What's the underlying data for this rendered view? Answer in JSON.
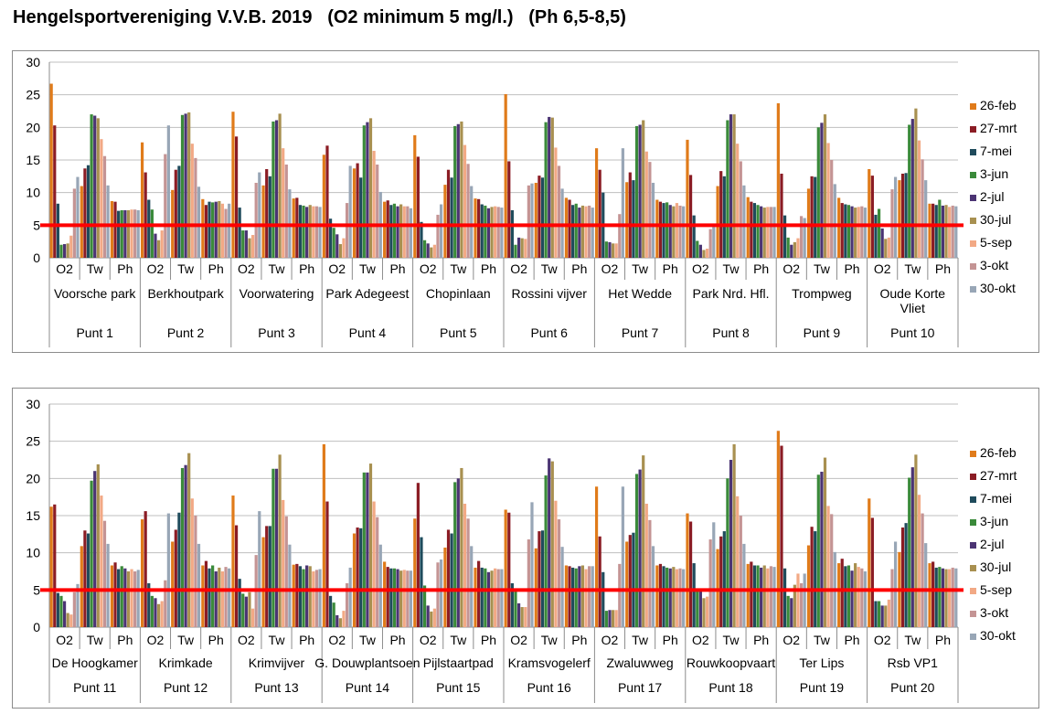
{
  "page": {
    "title": "Hengelsportvereniging V.V.B. 2019   (O2 minimum 5 mg/l.)   (Ph 6,5-8,5)"
  },
  "colors": {
    "series": [
      "#e07b1a",
      "#8b1c24",
      "#1f4b5c",
      "#3a8a3a",
      "#4b3473",
      "#a89050",
      "#f2a985",
      "#c49494",
      "#98a6b6"
    ],
    "threshold_line": "#ff0000",
    "gridline": "#bfbfbf",
    "axis": "#8c8c8c"
  },
  "chart_data": [
    {
      "type": "bar",
      "ylim": [
        0,
        30
      ],
      "yticks": [
        0,
        5,
        10,
        15,
        20,
        25,
        30
      ],
      "threshold": 5,
      "grid": true,
      "legend_position": "right",
      "series_names": [
        "26-feb",
        "27-mrt",
        "7-mei",
        "3-jun",
        "2-jul",
        "30-jul",
        "5-sep",
        "3-okt",
        "30-okt"
      ],
      "measures": [
        "O2",
        "Tw",
        "Ph"
      ],
      "groups": [
        {
          "punt": "Punt 1",
          "location": [
            "Voorsche park"
          ],
          "O2": [
            26.7,
            20.3,
            8.3,
            2.0,
            2.1,
            2.2,
            3.4,
            10.6,
            12.4
          ],
          "Tw": [
            11.0,
            13.7,
            14.2,
            22.0,
            21.8,
            21.4,
            18.2,
            15.6,
            11.1
          ],
          "Ph": [
            8.7,
            8.6,
            7.2,
            7.3,
            7.3,
            7.3,
            7.4,
            7.4,
            7.3
          ]
        },
        {
          "punt": "Punt 2",
          "location": [
            "Berkhoutpark"
          ],
          "O2": [
            17.7,
            13.1,
            8.9,
            7.4,
            3.7,
            2.7,
            4.2,
            15.9,
            20.3
          ],
          "Tw": [
            10.4,
            13.5,
            14.1,
            21.9,
            22.1,
            22.3,
            17.5,
            15.3,
            10.9
          ],
          "Ph": [
            9.0,
            8.1,
            8.6,
            8.5,
            8.6,
            8.7,
            8.3,
            7.5,
            8.3
          ]
        },
        {
          "punt": "Punt 3",
          "location": [
            "Voorwatering"
          ],
          "O2": [
            22.4,
            18.6,
            7.7,
            4.2,
            4.2,
            3.0,
            3.5,
            11.5,
            13.1
          ],
          "Tw": [
            11.1,
            13.6,
            12.5,
            20.9,
            21.1,
            22.1,
            16.8,
            14.3,
            10.5
          ],
          "Ph": [
            9.1,
            9.2,
            8.1,
            8.0,
            7.8,
            8.1,
            7.9,
            7.9,
            7.8
          ]
        },
        {
          "punt": "Punt 4",
          "location": [
            "Park Adegeest"
          ],
          "O2": [
            15.8,
            17.2,
            6.0,
            4.6,
            3.6,
            2.1,
            3.0,
            8.4,
            14.1
          ],
          "Tw": [
            13.7,
            14.5,
            12.3,
            20.3,
            20.8,
            21.4,
            16.4,
            14.3,
            10.1
          ],
          "Ph": [
            8.6,
            8.8,
            8.1,
            8.3,
            7.9,
            8.2,
            7.9,
            7.9,
            7.6
          ]
        },
        {
          "punt": "Punt 5",
          "location": [
            "Chopinlaan"
          ],
          "O2": [
            18.8,
            15.5,
            5.5,
            2.7,
            2.2,
            1.6,
            2.0,
            6.6,
            8.2
          ],
          "Tw": [
            11.2,
            13.5,
            12.3,
            20.2,
            20.5,
            20.9,
            17.3,
            14.4,
            11.0
          ],
          "Ph": [
            9.1,
            9.0,
            8.2,
            8.0,
            7.6,
            7.8,
            7.9,
            7.8,
            7.7
          ]
        },
        {
          "punt": "Punt 6",
          "location": [
            "Rossini vijver"
          ],
          "O2": [
            25.1,
            14.8,
            7.3,
            2.0,
            3.1,
            3.0,
            2.9,
            11.1,
            11.4
          ],
          "Tw": [
            11.5,
            12.6,
            12.3,
            20.8,
            21.6,
            21.5,
            16.9,
            14.1,
            10.6
          ],
          "Ph": [
            9.2,
            8.9,
            8.1,
            8.3,
            7.7,
            8.0,
            7.9,
            8.0,
            7.7
          ]
        },
        {
          "punt": "Punt 7",
          "location": [
            "Het Wedde"
          ],
          "O2": [
            16.8,
            13.5,
            10.0,
            2.5,
            2.4,
            2.2,
            2.2,
            6.7,
            16.8
          ],
          "Tw": [
            11.6,
            13.1,
            11.9,
            20.2,
            20.4,
            21.1,
            16.3,
            14.7,
            11.5
          ],
          "Ph": [
            8.9,
            8.6,
            8.4,
            8.5,
            8.1,
            7.9,
            8.4,
            8.0,
            7.9
          ]
        },
        {
          "punt": "Punt 8",
          "location": [
            "Park Nrd. Hfl."
          ],
          "O2": [
            18.1,
            12.7,
            6.5,
            2.6,
            2.0,
            1.2,
            1.4,
            4.4,
            5.0
          ],
          "Tw": [
            11.0,
            13.3,
            12.5,
            21.1,
            22.0,
            22.0,
            17.5,
            14.8,
            11.1
          ],
          "Ph": [
            9.3,
            8.6,
            8.4,
            8.1,
            7.9,
            7.7,
            7.8,
            7.8,
            7.8
          ]
        },
        {
          "punt": "Punt 9",
          "location": [
            "Trompweg"
          ],
          "O2": [
            23.7,
            12.9,
            6.5,
            3.1,
            2.0,
            2.4,
            3.0,
            6.4,
            6.1
          ],
          "Tw": [
            10.6,
            12.5,
            12.4,
            20.0,
            20.7,
            22.0,
            17.6,
            15.0,
            11.3
          ],
          "Ph": [
            9.2,
            8.4,
            8.2,
            8.1,
            7.9,
            7.7,
            7.8,
            7.9,
            7.7
          ]
        },
        {
          "punt": "Punt 10",
          "location": [
            "Oude Korte",
            "Vliet"
          ],
          "O2": [
            13.6,
            12.6,
            6.6,
            7.5,
            4.5,
            2.9,
            3.1,
            10.5,
            12.4
          ],
          "Tw": [
            11.9,
            12.9,
            13.0,
            20.4,
            21.3,
            22.9,
            18.0,
            15.1,
            11.9
          ],
          "Ph": [
            8.3,
            8.3,
            8.1,
            8.9,
            8.0,
            8.1,
            7.8,
            8.0,
            7.9
          ]
        }
      ]
    },
    {
      "type": "bar",
      "ylim": [
        0,
        30
      ],
      "yticks": [
        0,
        5,
        10,
        15,
        20,
        25,
        30
      ],
      "threshold": 5,
      "grid": true,
      "legend_position": "right",
      "series_names": [
        "26-feb",
        "27-mrt",
        "7-mei",
        "3-jun",
        "2-jul",
        "30-jul",
        "5-sep",
        "3-okt",
        "30-okt"
      ],
      "measures": [
        "O2",
        "Tw",
        "Ph"
      ],
      "groups": [
        {
          "punt": "Punt 11",
          "location": [
            "De Hoogkamer"
          ],
          "O2": [
            16.2,
            16.5,
            4.6,
            4.2,
            3.5,
            1.9,
            1.7,
            4.7,
            5.8
          ],
          "Tw": [
            10.9,
            13.0,
            12.6,
            19.7,
            21.0,
            21.9,
            17.7,
            14.3,
            11.2
          ],
          "Ph": [
            8.3,
            8.7,
            7.8,
            8.2,
            7.9,
            7.5,
            7.8,
            7.5,
            7.7
          ]
        },
        {
          "punt": "Punt 12",
          "location": [
            "Krimkade"
          ],
          "O2": [
            14.5,
            15.6,
            5.9,
            4.2,
            3.9,
            3.1,
            3.5,
            6.3,
            15.3
          ],
          "Tw": [
            11.5,
            13.1,
            15.4,
            21.4,
            21.8,
            23.4,
            17.3,
            15.0,
            11.2
          ],
          "Ph": [
            8.3,
            8.9,
            7.9,
            8.3,
            7.5,
            8.0,
            7.5,
            8.1,
            7.9
          ]
        },
        {
          "punt": "Punt 13",
          "location": [
            "Krimvijver"
          ],
          "O2": [
            17.7,
            13.7,
            6.5,
            4.5,
            4.1,
            4.7,
            2.5,
            9.7,
            15.6
          ],
          "Tw": [
            12.1,
            13.6,
            13.6,
            21.3,
            21.3,
            23.2,
            17.1,
            14.9,
            11.1
          ],
          "Ph": [
            8.4,
            8.5,
            8.2,
            7.8,
            8.3,
            8.2,
            7.5,
            7.7,
            7.8
          ]
        },
        {
          "punt": "Punt 14",
          "location": [
            "G. Douwplantsoen"
          ],
          "O2": [
            24.6,
            16.9,
            4.2,
            3.3,
            1.6,
            1.2,
            2.2,
            5.9,
            8.0
          ],
          "Tw": [
            12.6,
            13.4,
            13.3,
            20.8,
            20.8,
            22.0,
            16.9,
            14.8,
            11.1
          ],
          "Ph": [
            8.8,
            8.1,
            7.9,
            7.9,
            7.8,
            7.6,
            7.7,
            7.6,
            7.6
          ]
        },
        {
          "punt": "Punt 15",
          "location": [
            "Pijlstaartpad"
          ],
          "O2": [
            14.6,
            19.4,
            12.1,
            5.6,
            2.9,
            2.1,
            2.5,
            8.7,
            9.1
          ],
          "Tw": [
            10.7,
            13.1,
            12.6,
            19.5,
            20.0,
            21.4,
            16.6,
            14.6,
            10.9
          ],
          "Ph": [
            8.0,
            8.9,
            8.0,
            7.9,
            7.4,
            7.6,
            7.9,
            7.8,
            7.8
          ]
        },
        {
          "punt": "Punt 16",
          "location": [
            "Kramsvogelerf"
          ],
          "O2": [
            15.8,
            15.4,
            5.9,
            4.8,
            3.2,
            2.7,
            2.7,
            11.8,
            16.8
          ],
          "Tw": [
            10.6,
            12.9,
            13.0,
            20.4,
            22.7,
            22.3,
            17.0,
            14.5,
            10.8
          ],
          "Ph": [
            8.3,
            8.2,
            8.0,
            7.9,
            8.2,
            8.3,
            7.8,
            8.2,
            8.2
          ]
        },
        {
          "punt": "Punt 17",
          "location": [
            "Zwaluwweg"
          ],
          "O2": [
            18.9,
            12.2,
            7.4,
            2.2,
            2.3,
            2.3,
            2.3,
            8.5,
            18.9
          ],
          "Tw": [
            11.5,
            12.4,
            12.7,
            20.6,
            21.2,
            23.1,
            16.6,
            14.4,
            10.9
          ],
          "Ph": [
            8.3,
            8.5,
            8.2,
            8.0,
            7.9,
            8.1,
            7.8,
            7.9,
            7.8
          ]
        },
        {
          "punt": "Punt 18",
          "location": [
            "Rouwkoopvaart"
          ],
          "O2": [
            15.3,
            14.2,
            8.6,
            5.0,
            5.0,
            3.9,
            4.1,
            11.8,
            14.1
          ],
          "Tw": [
            10.5,
            12.2,
            12.9,
            20.0,
            22.5,
            24.6,
            17.6,
            15.0,
            11.2
          ],
          "Ph": [
            8.5,
            8.8,
            8.3,
            8.3,
            8.0,
            8.3,
            7.9,
            8.2,
            8.1
          ]
        },
        {
          "punt": "Punt 19",
          "location": [
            "Ter Lips"
          ],
          "O2": [
            26.4,
            24.4,
            7.9,
            4.2,
            3.9,
            5.7,
            7.2,
            5.9,
            7.2
          ],
          "Tw": [
            11.0,
            13.5,
            12.9,
            20.5,
            20.9,
            22.8,
            16.3,
            15.2,
            10.1
          ],
          "Ph": [
            8.6,
            9.2,
            8.2,
            8.3,
            7.6,
            8.6,
            8.1,
            7.9,
            7.5
          ]
        },
        {
          "punt": "Punt 20",
          "location": [
            "Rsb VP1"
          ],
          "O2": [
            17.3,
            14.7,
            3.5,
            3.5,
            2.9,
            2.9,
            3.7,
            7.8,
            11.5
          ],
          "Tw": [
            10.1,
            13.4,
            14.0,
            20.1,
            21.5,
            23.2,
            17.8,
            15.3,
            11.3
          ],
          "Ph": [
            8.6,
            8.8,
            8.0,
            8.1,
            7.9,
            7.8,
            7.8,
            8.0,
            7.9
          ]
        }
      ]
    }
  ]
}
